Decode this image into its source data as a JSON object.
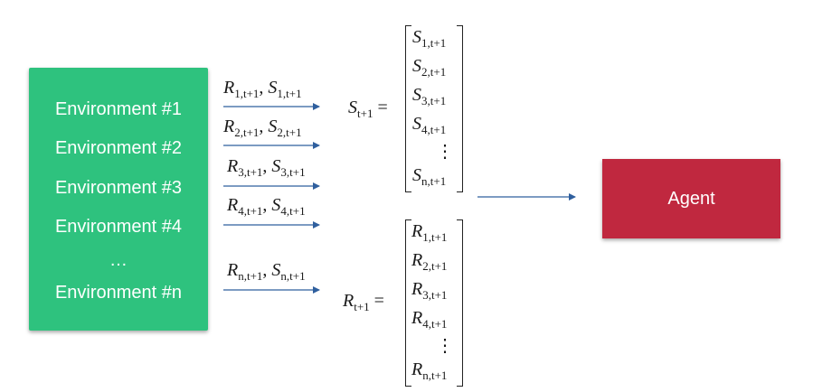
{
  "environments": {
    "items": [
      "Environment #1",
      "Environment #2",
      "Environment #3",
      "Environment #4",
      "…",
      "Environment #n"
    ],
    "color": "#2ec27e"
  },
  "transitions": [
    {
      "r": "1",
      "s": "1",
      "t": "t+1"
    },
    {
      "r": "2",
      "s": "2",
      "t": "t+1"
    },
    {
      "r": "3",
      "s": "3",
      "t": "t+1"
    },
    {
      "r": "4",
      "s": "4",
      "t": "t+1"
    },
    {
      "r": "n",
      "s": "n",
      "t": "t+1"
    }
  ],
  "state_vector": {
    "lhs_symbol": "S",
    "lhs_sub": "t+1",
    "entries": [
      {
        "symbol": "S",
        "sub": "1,t+1"
      },
      {
        "symbol": "S",
        "sub": "2,t+1"
      },
      {
        "symbol": "S",
        "sub": "3,t+1"
      },
      {
        "symbol": "S",
        "sub": "4,t+1"
      },
      {
        "symbol": "⋮",
        "sub": ""
      },
      {
        "symbol": "S",
        "sub": "n,t+1"
      }
    ]
  },
  "reward_vector": {
    "lhs_symbol": "R",
    "lhs_sub": "t+1",
    "entries": [
      {
        "symbol": "R",
        "sub": "1,t+1"
      },
      {
        "symbol": "R",
        "sub": "2,t+1"
      },
      {
        "symbol": "R",
        "sub": "3,t+1"
      },
      {
        "symbol": "R",
        "sub": "4,t+1"
      },
      {
        "symbol": "⋮",
        "sub": ""
      },
      {
        "symbol": "R",
        "sub": "n,t+1"
      }
    ]
  },
  "agent": {
    "label": "Agent",
    "color": "#c0283f"
  },
  "arrow_color": "#2f5f9e"
}
